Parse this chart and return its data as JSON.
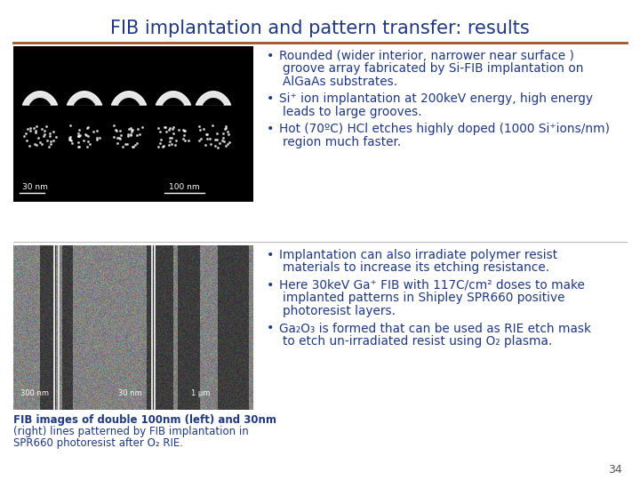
{
  "title": "FIB implantation and pattern transfer: results",
  "title_color": "#1F3880",
  "title_fontsize": 15,
  "title_fontweight": "normal",
  "divider_color": "#A0522D",
  "bg_color": "#FFFFFF",
  "text_color": "#1F3880",
  "bullet_color": "#1F3880",
  "section1_bullets": [
    "Rounded (wider interior, narrower near surface )\ngroove array fabricated by Si-FIB implantation on\nAlGaAs substrates.",
    "Si⁺ ion implantation at 200keV energy, high energy\nleads to large grooves.",
    "Hot (70ºC) HCl etches highly doped (1000 Si⁺ions/nm)\nregion much faster."
  ],
  "section2_bullets": [
    "Implantation can also irradiate polymer resist\nmaterials to increase its etching resistance.",
    "Here 30keV Ga⁺ FIB with 117C/cm² doses to make\nimplanted patterns in Shipley SPR660 positive\nphotoresist layers.",
    "Ga₂O₃ is formed that can be used as RIE etch mask\nto etch un-irradiated resist using O₂ plasma."
  ],
  "caption_bold": "FIB images of double 100nm (left) and 30nm",
  "caption_lines": [
    "FIB images of double 100nm (left) and 30nm",
    "(right) lines patterned by FIB implantation in",
    "SPR660 photoresist after O₂ RIE."
  ],
  "page_number": "34",
  "font_family": "DejaVu Sans",
  "section_divider_color": "#BBBBBB",
  "img1_bg": "#0A0A0A",
  "img2_bg": "#888888"
}
